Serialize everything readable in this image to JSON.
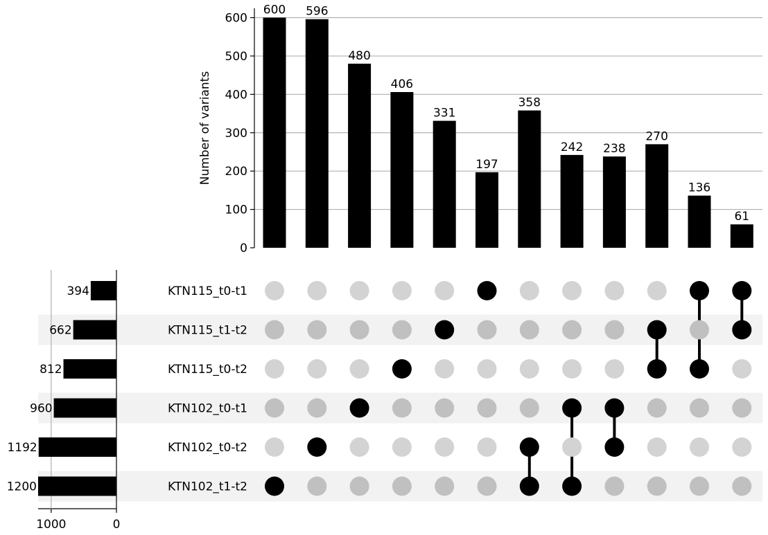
{
  "chart_data": {
    "type": "upset",
    "ylabel": "Number of variants",
    "ylim": [
      0,
      620
    ],
    "yticks": [
      0,
      100,
      200,
      300,
      400,
      500,
      600
    ],
    "sets": [
      {
        "name": "KTN115_t0-t1",
        "size": 394
      },
      {
        "name": "KTN115_t1-t2",
        "size": 662
      },
      {
        "name": "KTN115_t0-t2",
        "size": 812
      },
      {
        "name": "KTN102_t0-t1",
        "size": 960
      },
      {
        "name": "KTN102_t0-t2",
        "size": 1192
      },
      {
        "name": "KTN102_t1-t2",
        "size": 1200
      }
    ],
    "set_size_xlim": [
      1200,
      0
    ],
    "set_size_ticks": [
      1000,
      0
    ],
    "intersections": [
      {
        "sets": [
          "KTN102_t1-t2"
        ],
        "count": 600
      },
      {
        "sets": [
          "KTN102_t0-t2"
        ],
        "count": 596
      },
      {
        "sets": [
          "KTN102_t0-t1"
        ],
        "count": 480
      },
      {
        "sets": [
          "KTN115_t0-t2"
        ],
        "count": 406
      },
      {
        "sets": [
          "KTN115_t1-t2"
        ],
        "count": 331
      },
      {
        "sets": [
          "KTN115_t0-t1"
        ],
        "count": 197
      },
      {
        "sets": [
          "KTN102_t0-t2",
          "KTN102_t1-t2"
        ],
        "count": 358
      },
      {
        "sets": [
          "KTN102_t0-t1",
          "KTN102_t1-t2"
        ],
        "count": 242
      },
      {
        "sets": [
          "KTN102_t0-t1",
          "KTN102_t0-t2"
        ],
        "count": 238
      },
      {
        "sets": [
          "KTN115_t1-t2",
          "KTN115_t0-t2"
        ],
        "count": 270
      },
      {
        "sets": [
          "KTN115_t0-t1",
          "KTN115_t0-t2"
        ],
        "count": 136
      },
      {
        "sets": [
          "KTN115_t0-t1",
          "KTN115_t1-t2"
        ],
        "count": 61
      }
    ],
    "grid": true,
    "colors": {
      "bar": "#000000",
      "dot_active": "#000000",
      "dot_inactive": "#d3d3d3",
      "dot_inactive_shaded": "#c0c0c0",
      "row_shade": "#f2f2f2",
      "grid": "#b0b0b0"
    }
  }
}
